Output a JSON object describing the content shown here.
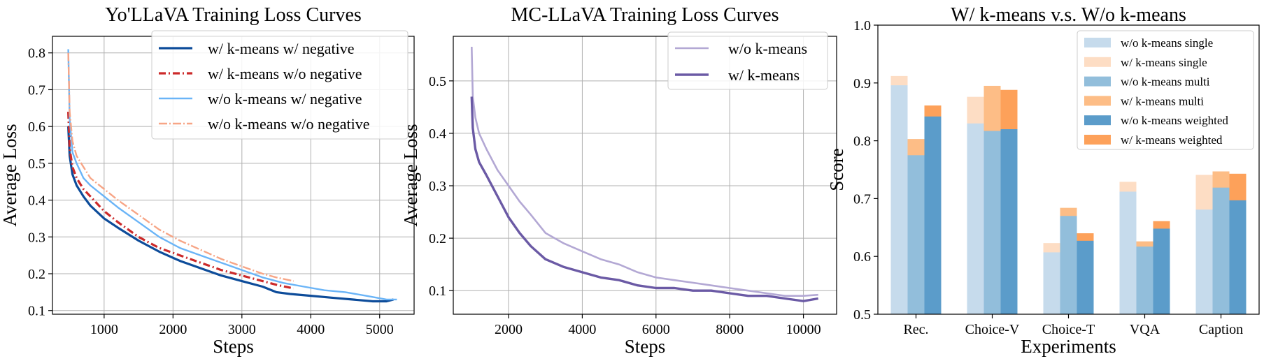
{
  "chart_data": [
    {
      "type": "line",
      "title": "Yo'LLaVA Training Loss Curves",
      "xlabel": "Steps",
      "ylabel": "Average Loss",
      "xlim": [
        250,
        5500
      ],
      "ylim": [
        0.09,
        0.845
      ],
      "xticks": [
        1000,
        2000,
        3000,
        4000,
        5000
      ],
      "yticks": [
        0.1,
        0.2,
        0.3,
        0.4,
        0.5,
        0.6,
        0.7,
        0.8
      ],
      "grid": true,
      "legend_position": "top-right",
      "series": [
        {
          "name": "w/ k-means w/ negative",
          "color": "#0d4c9a",
          "dash": "solid",
          "width": 3.2,
          "x": [
            480,
            500,
            540,
            600,
            700,
            800,
            1000,
            1200,
            1500,
            1800,
            2100,
            2400,
            2700,
            3000,
            3300,
            3500,
            3700,
            4000,
            4300,
            4600,
            4900,
            5100,
            5200
          ],
          "y": [
            0.6,
            0.52,
            0.47,
            0.44,
            0.41,
            0.385,
            0.35,
            0.325,
            0.29,
            0.26,
            0.235,
            0.215,
            0.195,
            0.18,
            0.165,
            0.15,
            0.145,
            0.14,
            0.135,
            0.13,
            0.125,
            0.125,
            0.13
          ]
        },
        {
          "name": "w/ k-means w/o negative",
          "color": "#cc2a2a",
          "dash": "10,4,2,4",
          "width": 3.2,
          "x": [
            480,
            500,
            540,
            600,
            700,
            800,
            1000,
            1200,
            1500,
            1800,
            2100,
            2400,
            2700,
            3000,
            3300,
            3500,
            3750
          ],
          "y": [
            0.64,
            0.54,
            0.49,
            0.46,
            0.43,
            0.41,
            0.37,
            0.34,
            0.3,
            0.27,
            0.25,
            0.23,
            0.21,
            0.195,
            0.18,
            0.17,
            0.16
          ]
        },
        {
          "name": "w/o k-means w/ negative",
          "color": "#6ab4f7",
          "dash": "solid",
          "width": 2.4,
          "x": [
            480,
            500,
            540,
            600,
            700,
            800,
            1000,
            1200,
            1500,
            1800,
            2100,
            2400,
            2700,
            3000,
            3300,
            3600,
            3900,
            4200,
            4500,
            4800,
            5100,
            5250
          ],
          "y": [
            0.81,
            0.62,
            0.53,
            0.5,
            0.46,
            0.44,
            0.41,
            0.38,
            0.34,
            0.3,
            0.27,
            0.25,
            0.23,
            0.21,
            0.19,
            0.175,
            0.165,
            0.155,
            0.15,
            0.14,
            0.13,
            0.13
          ]
        },
        {
          "name": "w/o k-means w/o negative",
          "color": "#f7a586",
          "dash": "12,3,2,3",
          "width": 2.4,
          "x": [
            480,
            500,
            540,
            600,
            700,
            800,
            1000,
            1200,
            1500,
            1800,
            2100,
            2400,
            2700,
            3000,
            3300,
            3500,
            3750
          ],
          "y": [
            0.8,
            0.64,
            0.56,
            0.52,
            0.49,
            0.46,
            0.43,
            0.4,
            0.36,
            0.32,
            0.29,
            0.265,
            0.24,
            0.22,
            0.2,
            0.19,
            0.18
          ]
        }
      ]
    },
    {
      "type": "line",
      "title": "MC-LLaVA Training Loss Curves",
      "xlabel": "Steps",
      "ylabel": "Average Loss",
      "xlim": [
        500,
        10900
      ],
      "ylim": [
        0.055,
        0.585
      ],
      "xticks": [
        2000,
        4000,
        6000,
        8000,
        10000
      ],
      "yticks": [
        0.1,
        0.2,
        0.3,
        0.4,
        0.5
      ],
      "grid": true,
      "legend_position": "top-right",
      "series": [
        {
          "name": "w/o k-means",
          "color": "#b3a8d4",
          "dash": "solid",
          "width": 2.6,
          "x": [
            1000,
            1030,
            1100,
            1200,
            1400,
            1700,
            2000,
            2300,
            2600,
            3000,
            3500,
            4000,
            4500,
            5000,
            5500,
            6000,
            6500,
            7000,
            7500,
            8000,
            8500,
            9000,
            9500,
            10000,
            10400
          ],
          "y": [
            0.565,
            0.47,
            0.43,
            0.4,
            0.37,
            0.33,
            0.3,
            0.27,
            0.245,
            0.21,
            0.19,
            0.175,
            0.16,
            0.15,
            0.135,
            0.125,
            0.12,
            0.115,
            0.11,
            0.105,
            0.1,
            0.095,
            0.09,
            0.09,
            0.092
          ]
        },
        {
          "name": "w/ k-means",
          "color": "#6b5aa5",
          "dash": "solid",
          "width": 3.4,
          "x": [
            1000,
            1030,
            1100,
            1200,
            1400,
            1700,
            2000,
            2300,
            2600,
            3000,
            3500,
            4000,
            4500,
            5000,
            5500,
            6000,
            6500,
            7000,
            7500,
            8000,
            8500,
            9000,
            9500,
            10000,
            10400
          ],
          "y": [
            0.47,
            0.41,
            0.37,
            0.345,
            0.32,
            0.28,
            0.24,
            0.21,
            0.185,
            0.16,
            0.145,
            0.135,
            0.125,
            0.12,
            0.11,
            0.105,
            0.105,
            0.1,
            0.1,
            0.095,
            0.09,
            0.09,
            0.085,
            0.08,
            0.085
          ]
        }
      ]
    },
    {
      "type": "bar",
      "title": "W/ k-means v.s. W/o k-means",
      "xlabel": "Experiments",
      "ylabel": "Score",
      "ylim": [
        0.5,
        1.0
      ],
      "yticks": [
        0.5,
        0.6,
        0.7,
        0.8,
        0.9,
        1.0
      ],
      "yticklabels": [
        "0.5",
        "0.6",
        "0.7",
        "0.8",
        "0.9",
        "1.0"
      ],
      "legend_position": "top-right",
      "categories": [
        "Rec.",
        "Choice-V",
        "Choice-T",
        "VQA",
        "Caption"
      ],
      "groups": [
        {
          "name": "single",
          "without": {
            "label": "w/o k-means single",
            "color": "#c6dbec",
            "values": [
              0.896,
              0.83,
              0.607,
              0.712,
              0.681
            ]
          },
          "with": {
            "label": "w/ k-means single",
            "color": "#fdddc4",
            "values": [
              0.912,
              0.876,
              0.623,
              0.729,
              0.741
            ]
          }
        },
        {
          "name": "multi",
          "without": {
            "label": "w/o k-means multi",
            "color": "#92bedb",
            "values": [
              0.775,
              0.817,
              0.67,
              0.617,
              0.719
            ]
          },
          "with": {
            "label": "w/ k-means multi",
            "color": "#fdbd86",
            "values": [
              0.803,
              0.895,
              0.684,
              0.626,
              0.747
            ]
          }
        },
        {
          "name": "weighted",
          "without": {
            "label": "w/o k-means weighted",
            "color": "#5b9cca",
            "values": [
              0.842,
              0.82,
              0.627,
              0.648,
              0.697
            ]
          },
          "with": {
            "label": "w/ k-means weighted",
            "color": "#fda15a",
            "values": [
              0.861,
              0.888,
              0.64,
              0.661,
              0.743
            ]
          }
        }
      ]
    }
  ]
}
